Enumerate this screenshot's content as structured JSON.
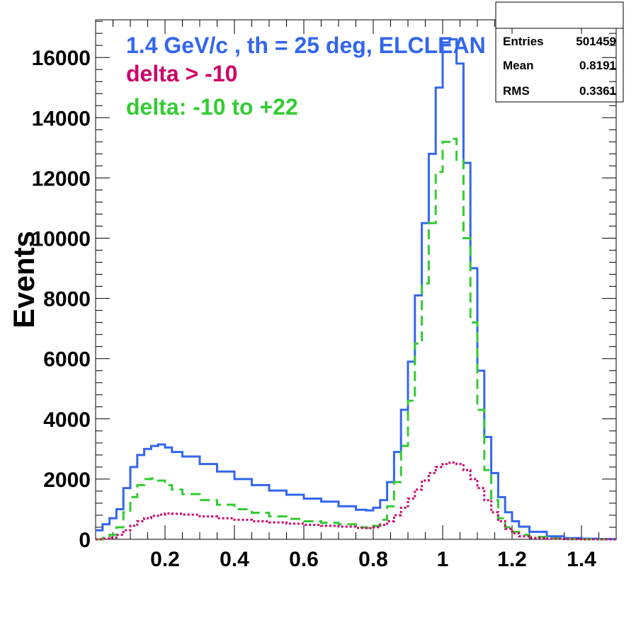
{
  "chart_data": {
    "type": "line",
    "title": "",
    "xlabel": "",
    "ylabel": "Events",
    "xlim": [
      0,
      1.5
    ],
    "ylim": [
      0,
      17250
    ],
    "x_ticks": [
      0.2,
      0.4,
      0.6,
      0.8,
      1,
      1.2,
      1.4
    ],
    "x_tick_labels": [
      "0.2",
      "0.4",
      "0.6",
      "0.8",
      "1",
      "1.2",
      "1.4"
    ],
    "y_ticks": [
      0,
      2000,
      4000,
      6000,
      8000,
      10000,
      12000,
      14000,
      16000
    ],
    "y_tick_labels": [
      "0",
      "2000",
      "4000",
      "6000",
      "8000",
      "10000",
      "12000",
      "14000",
      "16000"
    ],
    "grid": false,
    "legend": {
      "placement": "top-left",
      "entries": [
        {
          "label": "1.4 GeV/c , th = 25 deg, ELCLEAN",
          "color": "#3366ee"
        },
        {
          "label": "delta > -10",
          "color": "#cc0066"
        },
        {
          "label": "delta: -10 to +22",
          "color": "#33cc33"
        }
      ]
    },
    "stats": {
      "rows": [
        {
          "label": "Entries",
          "value": "501459"
        },
        {
          "label": "Mean",
          "value": "0.8191"
        },
        {
          "label": "RMS",
          "value": "0.3361"
        }
      ]
    },
    "series": [
      {
        "color": "#3366ee",
        "style": "solid",
        "x": [
          0,
          0.02,
          0.04,
          0.06,
          0.08,
          0.1,
          0.12,
          0.14,
          0.16,
          0.18,
          0.2,
          0.22,
          0.25,
          0.3,
          0.35,
          0.4,
          0.45,
          0.5,
          0.55,
          0.6,
          0.65,
          0.7,
          0.75,
          0.78,
          0.8,
          0.82,
          0.84,
          0.86,
          0.88,
          0.9,
          0.92,
          0.94,
          0.96,
          0.98,
          1.0,
          1.02,
          1.04,
          1.06,
          1.08,
          1.1,
          1.12,
          1.14,
          1.16,
          1.18,
          1.2,
          1.22,
          1.25,
          1.3,
          1.35,
          1.4,
          1.45,
          1.5
        ],
        "y": [
          300,
          500,
          700,
          1000,
          1700,
          2400,
          2800,
          3000,
          3100,
          3150,
          3050,
          2900,
          2750,
          2500,
          2250,
          2000,
          1800,
          1620,
          1480,
          1350,
          1250,
          1100,
          980,
          960,
          1050,
          1300,
          1900,
          2900,
          4300,
          5900,
          8100,
          10500,
          12800,
          15000,
          16500,
          16600,
          15800,
          12500,
          9000,
          5600,
          3400,
          2200,
          1400,
          900,
          600,
          420,
          250,
          100,
          40,
          20,
          10,
          0
        ]
      },
      {
        "color": "#33cc33",
        "style": "dashed",
        "x": [
          0,
          0.02,
          0.04,
          0.06,
          0.08,
          0.1,
          0.12,
          0.14,
          0.16,
          0.18,
          0.2,
          0.22,
          0.25,
          0.3,
          0.35,
          0.4,
          0.45,
          0.5,
          0.55,
          0.6,
          0.65,
          0.7,
          0.75,
          0.78,
          0.8,
          0.82,
          0.84,
          0.86,
          0.88,
          0.9,
          0.92,
          0.94,
          0.96,
          0.98,
          1.0,
          1.02,
          1.04,
          1.06,
          1.08,
          1.1,
          1.12,
          1.14,
          1.16,
          1.18,
          1.2,
          1.22,
          1.25,
          1.3,
          1.35,
          1.4,
          1.45,
          1.5
        ],
        "y": [
          0,
          50,
          150,
          400,
          900,
          1400,
          1800,
          2000,
          2020,
          1950,
          1800,
          1650,
          1500,
          1300,
          1150,
          1000,
          880,
          760,
          680,
          600,
          550,
          500,
          400,
          380,
          450,
          650,
          1100,
          1900,
          3100,
          4600,
          6500,
          8500,
          10500,
          12200,
          13200,
          13300,
          12600,
          10000,
          7200,
          4300,
          2300,
          1300,
          700,
          400,
          250,
          150,
          80,
          30,
          10,
          5,
          0,
          0
        ]
      },
      {
        "color": "#cc0066",
        "style": "dotted",
        "x": [
          0,
          0.02,
          0.04,
          0.06,
          0.08,
          0.1,
          0.12,
          0.14,
          0.16,
          0.18,
          0.2,
          0.22,
          0.25,
          0.3,
          0.35,
          0.4,
          0.45,
          0.5,
          0.55,
          0.6,
          0.65,
          0.7,
          0.75,
          0.78,
          0.8,
          0.82,
          0.84,
          0.86,
          0.88,
          0.9,
          0.92,
          0.94,
          0.96,
          0.98,
          1.0,
          1.02,
          1.04,
          1.06,
          1.08,
          1.1,
          1.12,
          1.14,
          1.16,
          1.18,
          1.2,
          1.22,
          1.25,
          1.3,
          1.35,
          1.4,
          1.45,
          1.5
        ],
        "y": [
          0,
          20,
          60,
          150,
          300,
          450,
          600,
          700,
          780,
          820,
          860,
          850,
          820,
          760,
          700,
          650,
          600,
          560,
          520,
          480,
          450,
          420,
          380,
          370,
          400,
          480,
          600,
          800,
          1050,
          1350,
          1650,
          1950,
          2200,
          2400,
          2500,
          2550,
          2500,
          2300,
          2000,
          1700,
          1300,
          900,
          600,
          350,
          200,
          100,
          50,
          20,
          5,
          0,
          0,
          0
        ]
      }
    ]
  }
}
